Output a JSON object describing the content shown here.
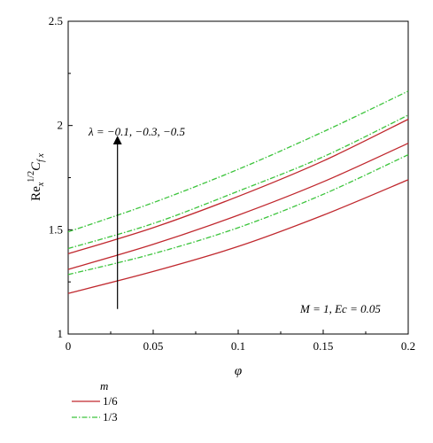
{
  "chart_data": {
    "type": "line",
    "title": "",
    "xlabel": "φ",
    "ylabel": {
      "base": "Re",
      "base_sub": "x",
      "sup": "1/2",
      "main": "C",
      "main_sub": "f x"
    },
    "xlim": [
      0,
      0.2
    ],
    "ylim": [
      1,
      2.5
    ],
    "x_ticks": [
      "0",
      "0.05",
      "0.1",
      "0.15",
      "0.2"
    ],
    "y_ticks": [
      "1",
      "1.5",
      "2",
      "2.5"
    ],
    "grid": false,
    "annotations": {
      "lambda_label": "λ = −0.1, −0.3, −0.5",
      "params_label": "M = 1, Ec = 0.05"
    },
    "legend": {
      "title": "m",
      "placement": "bottom-left",
      "entries": [
        {
          "label": "1/6",
          "color": "#c0282e",
          "dash": "solid"
        },
        {
          "label": "1/3",
          "color": "#3cc43c",
          "dash": "dashdot"
        }
      ]
    },
    "x": [
      0,
      0.05,
      0.1,
      0.15,
      0.2
    ],
    "series": [
      {
        "group": "1/6",
        "color": "#c0282e",
        "dash": "solid",
        "values": [
          1.195,
          1.3,
          1.42,
          1.57,
          1.74
        ]
      },
      {
        "group": "1/6",
        "color": "#c0282e",
        "dash": "solid",
        "values": [
          1.31,
          1.43,
          1.57,
          1.73,
          1.915
        ]
      },
      {
        "group": "1/6",
        "color": "#c0282e",
        "dash": "solid",
        "values": [
          1.385,
          1.51,
          1.66,
          1.83,
          2.03
        ]
      },
      {
        "group": "1/3",
        "color": "#3cc43c",
        "dash": "dashdot",
        "values": [
          1.285,
          1.385,
          1.51,
          1.67,
          1.86
        ]
      },
      {
        "group": "1/3",
        "color": "#3cc43c",
        "dash": "dashdot",
        "values": [
          1.41,
          1.53,
          1.685,
          1.85,
          2.05
        ]
      },
      {
        "group": "1/3",
        "color": "#3cc43c",
        "dash": "dashdot",
        "values": [
          1.49,
          1.63,
          1.79,
          1.97,
          2.165
        ]
      }
    ],
    "arrow": {
      "x": 0.029,
      "y_from": 1.12,
      "y_to": 1.93
    }
  }
}
